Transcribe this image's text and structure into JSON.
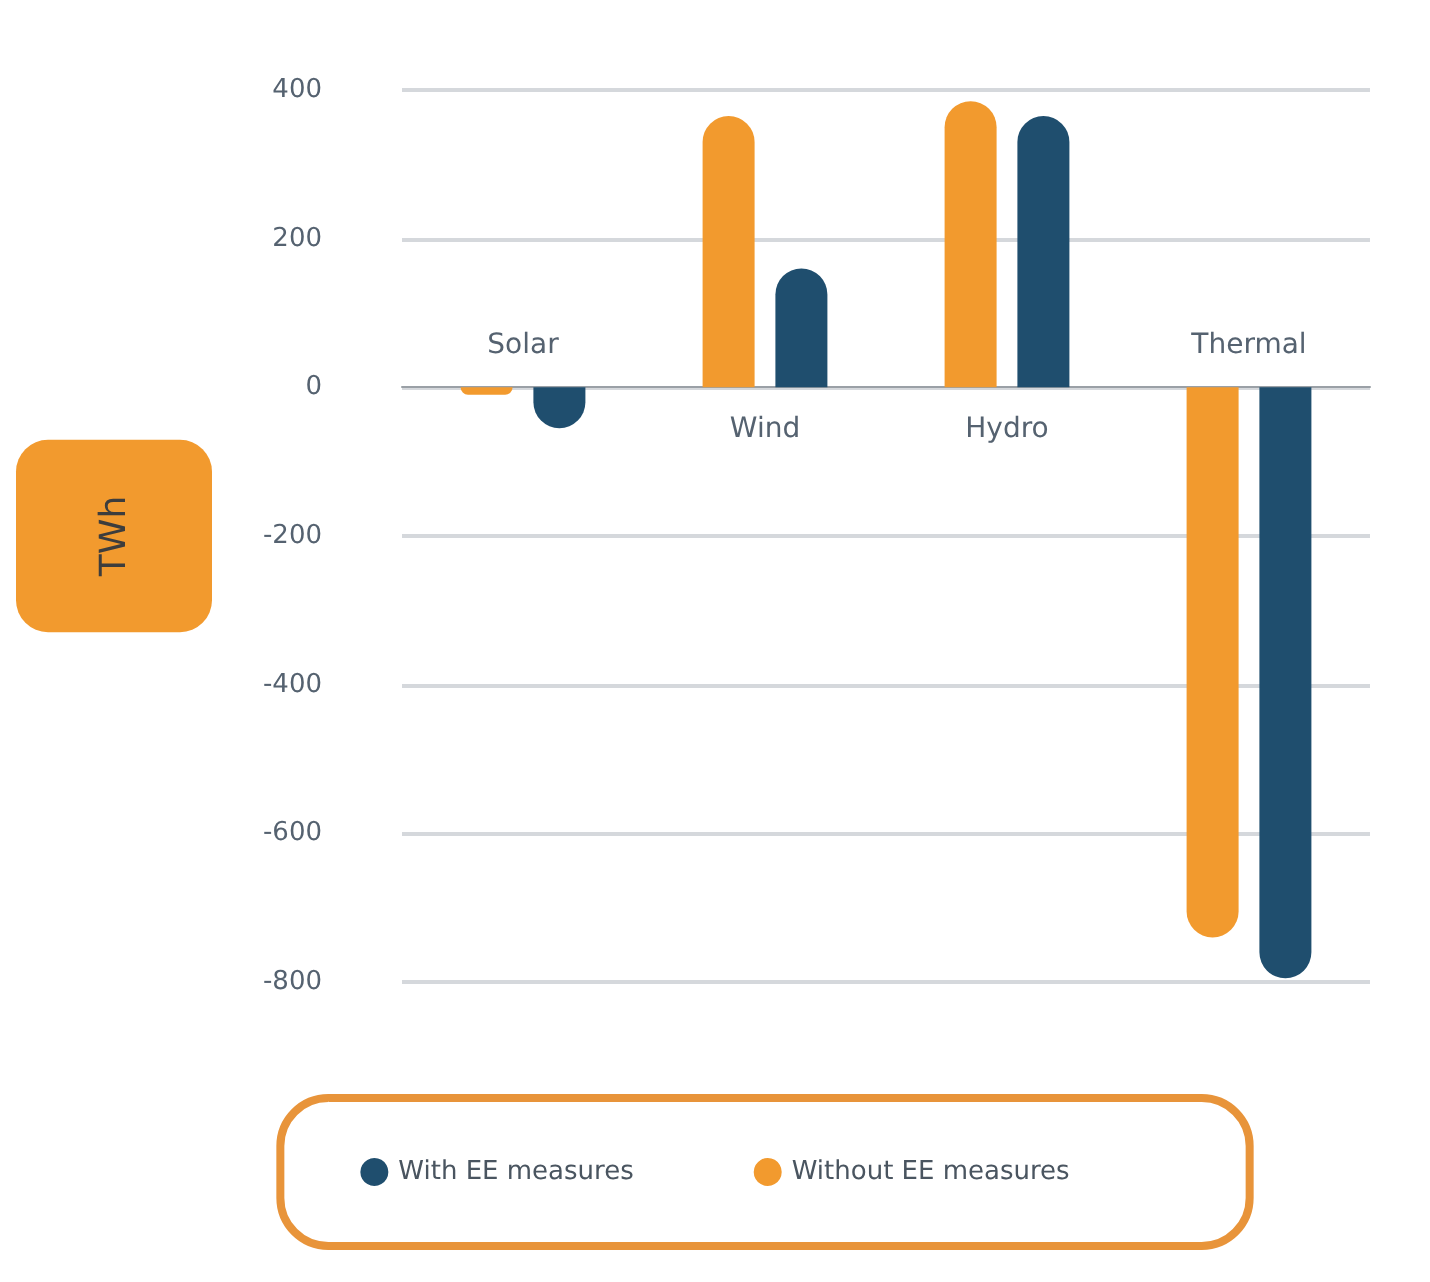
{
  "chart_data": {
    "type": "bar",
    "ylabel": "TWh",
    "categories": [
      "Solar",
      "Wind",
      "Hydro",
      "Thermal"
    ],
    "series": [
      {
        "name": "Without EE measures",
        "color": "#f29a2e",
        "values": [
          -10,
          365,
          385,
          -740
        ]
      },
      {
        "name": "With EE measures",
        "color": "#1f4e6e",
        "values": [
          -55,
          160,
          365,
          -795
        ]
      }
    ],
    "ylim": [
      -800,
      400
    ],
    "yticks": [
      -800,
      -600,
      -400,
      -200,
      0,
      200,
      400
    ],
    "grid": "y",
    "legend": "bottom"
  }
}
